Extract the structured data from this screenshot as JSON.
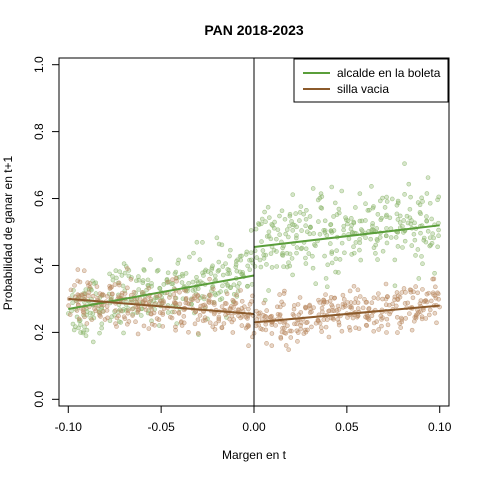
{
  "chart_data": {
    "type": "scatter",
    "title": "PAN 2018-2023",
    "xlabel": "Margen en t",
    "ylabel": "Probabilidad de ganar en t+1",
    "xlim": [
      -0.105,
      0.105
    ],
    "ylim": [
      -0.02,
      1.02
    ],
    "x_ticks": [
      -0.1,
      -0.05,
      0.0,
      0.05,
      0.1
    ],
    "x_tick_labels": [
      "-0.10",
      "-0.05",
      "0.00",
      "0.05",
      "0.10"
    ],
    "y_ticks": [
      0.0,
      0.2,
      0.4,
      0.6,
      0.8,
      1.0
    ],
    "y_tick_labels": [
      "0.0",
      "0.2",
      "0.4",
      "0.6",
      "0.8",
      "1.0"
    ],
    "cutoff_x": 0.0,
    "legend_position": "top-right",
    "grid": false,
    "series": [
      {
        "name": "alcalde en la boleta",
        "color": "#5a9e3a",
        "point_color": "#8ab56a",
        "fit_left": [
          [
            -0.1,
            0.27
          ],
          [
            0.0,
            0.37
          ]
        ],
        "fit_right": [
          [
            0.0,
            0.455
          ],
          [
            0.1,
            0.52
          ]
        ],
        "binned_points": [
          [
            -0.095,
            0.27
          ],
          [
            -0.085,
            0.28
          ],
          [
            -0.075,
            0.3
          ],
          [
            -0.065,
            0.31
          ],
          [
            -0.055,
            0.32
          ],
          [
            -0.045,
            0.33
          ],
          [
            -0.035,
            0.34
          ],
          [
            -0.025,
            0.35
          ],
          [
            -0.015,
            0.36
          ],
          [
            -0.005,
            0.38
          ],
          [
            0.005,
            0.47
          ],
          [
            0.015,
            0.46
          ],
          [
            0.025,
            0.48
          ],
          [
            0.035,
            0.49
          ],
          [
            0.045,
            0.49
          ],
          [
            0.055,
            0.5
          ],
          [
            0.065,
            0.51
          ],
          [
            0.075,
            0.51
          ],
          [
            0.085,
            0.52
          ],
          [
            0.095,
            0.52
          ]
        ]
      },
      {
        "name": "silla vacia",
        "color": "#8b5a2b",
        "point_color": "#b98a62",
        "fit_left": [
          [
            -0.1,
            0.3
          ],
          [
            0.0,
            0.255
          ]
        ],
        "fit_right": [
          [
            0.0,
            0.23
          ],
          [
            0.1,
            0.28
          ]
        ],
        "binned_points": [
          [
            -0.095,
            0.3
          ],
          [
            -0.085,
            0.29
          ],
          [
            -0.075,
            0.29
          ],
          [
            -0.065,
            0.28
          ],
          [
            -0.055,
            0.28
          ],
          [
            -0.045,
            0.28
          ],
          [
            -0.035,
            0.27
          ],
          [
            -0.025,
            0.27
          ],
          [
            -0.015,
            0.26
          ],
          [
            -0.005,
            0.26
          ],
          [
            0.005,
            0.23
          ],
          [
            0.015,
            0.24
          ],
          [
            0.025,
            0.24
          ],
          [
            0.035,
            0.25
          ],
          [
            0.045,
            0.25
          ],
          [
            0.055,
            0.26
          ],
          [
            0.065,
            0.26
          ],
          [
            0.075,
            0.27
          ],
          [
            0.085,
            0.27
          ],
          [
            0.095,
            0.28
          ]
        ]
      }
    ]
  }
}
